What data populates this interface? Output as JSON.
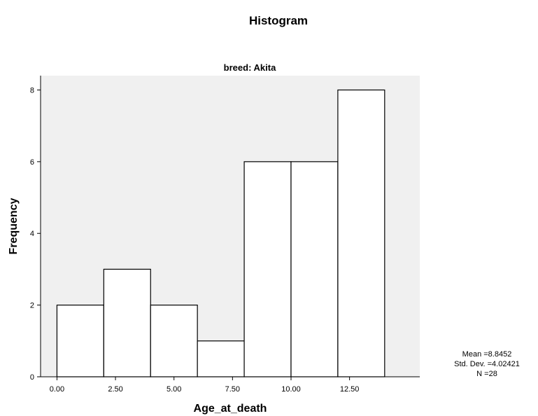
{
  "chart_data": {
    "type": "bar",
    "title": "Histogram",
    "subtitle": "breed: Akita",
    "xlabel": "Age_at_death",
    "ylabel": "Frequency",
    "bins": [
      {
        "start": 0,
        "end": 2,
        "value": 2
      },
      {
        "start": 2,
        "end": 4,
        "value": 3
      },
      {
        "start": 4,
        "end": 6,
        "value": 2
      },
      {
        "start": 6,
        "end": 8,
        "value": 1
      },
      {
        "start": 8,
        "end": 10,
        "value": 6
      },
      {
        "start": 10,
        "end": 12,
        "value": 6
      },
      {
        "start": 12,
        "end": 14,
        "value": 8
      }
    ],
    "x_ticks": [
      {
        "value": 0,
        "label": "0.00"
      },
      {
        "value": 2.5,
        "label": "2.50"
      },
      {
        "value": 5,
        "label": "5.00"
      },
      {
        "value": 7.5,
        "label": "7.50"
      },
      {
        "value": 10,
        "label": "10.00"
      },
      {
        "value": 12.5,
        "label": "12.50"
      }
    ],
    "y_ticks": [
      {
        "value": 0,
        "label": "0"
      },
      {
        "value": 2,
        "label": "2"
      },
      {
        "value": 4,
        "label": "4"
      },
      {
        "value": 6,
        "label": "6"
      },
      {
        "value": 8,
        "label": "8"
      }
    ],
    "xlim": [
      -0.7,
      15.5
    ],
    "ylim": [
      0,
      8.4
    ],
    "grid": false,
    "plot_background": "#f0f0f0",
    "bar_fill": "#ffffff",
    "bar_stroke": "#000000",
    "stats": {
      "mean": "Mean =8.8452",
      "std_dev": "Std. Dev. =4.02421",
      "n": "N =28"
    }
  }
}
